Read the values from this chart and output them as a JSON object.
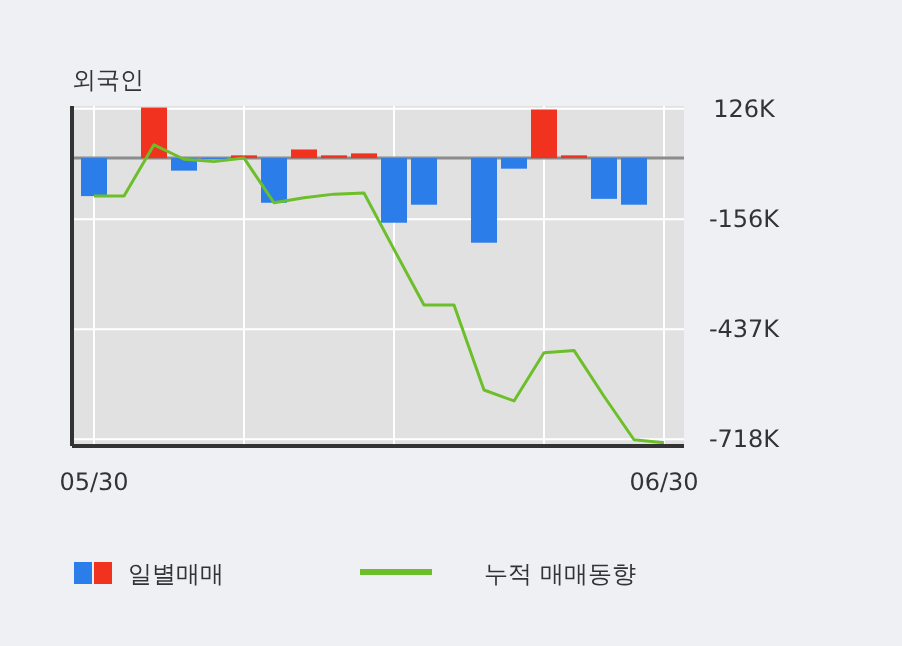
{
  "chart_data": {
    "type": "bar",
    "title": "외국인",
    "categories": [
      "05/30",
      null,
      null,
      null,
      null,
      null,
      null,
      null,
      null,
      null,
      null,
      null,
      null,
      null,
      null,
      null,
      null,
      null,
      null,
      "06/30"
    ],
    "series": [
      {
        "name": "일별매매",
        "colors": [
          "#2b7de9",
          "#2b7de9",
          "#f0321e",
          "#2b7de9",
          "#2b7de9",
          "#f0321e",
          "#2b7de9",
          "#f0321e",
          "#f0321e",
          "#f0321e",
          "#2b7de9",
          "#2b7de9",
          "#2b7de9",
          "#2b7de9",
          "#2b7de9",
          "#f0321e",
          "#f0321e",
          "#2b7de9",
          "#2b7de9",
          "#2b7de9"
        ],
        "values": [
          -97,
          0,
          129,
          -32,
          -3,
          7,
          -114,
          22,
          7,
          12,
          -165,
          -119,
          0,
          -216,
          -27,
          124,
          7,
          -104,
          -119,
          0
        ]
      },
      {
        "name": "누적 매매동향",
        "type": "line",
        "color": "#6cbf2a",
        "values": [
          -97,
          -97,
          34,
          -3,
          -9,
          0,
          -114,
          -101,
          -92,
          -89,
          -233,
          -375,
          -375,
          -592,
          -620,
          -497,
          -491,
          -608,
          -719,
          -727
        ]
      }
    ],
    "ylim": [
      -735,
      133
    ],
    "yticks": [
      {
        "value": 126,
        "label": "126K"
      },
      {
        "value": -156,
        "label": "-156K"
      },
      {
        "value": -437,
        "label": "-437K"
      },
      {
        "value": -718,
        "label": "-718K"
      }
    ],
    "ref_lines": [
      {
        "axis": "y",
        "value": 0,
        "color": "#8c8c8c"
      }
    ],
    "grid": true,
    "legend": "bottom"
  }
}
